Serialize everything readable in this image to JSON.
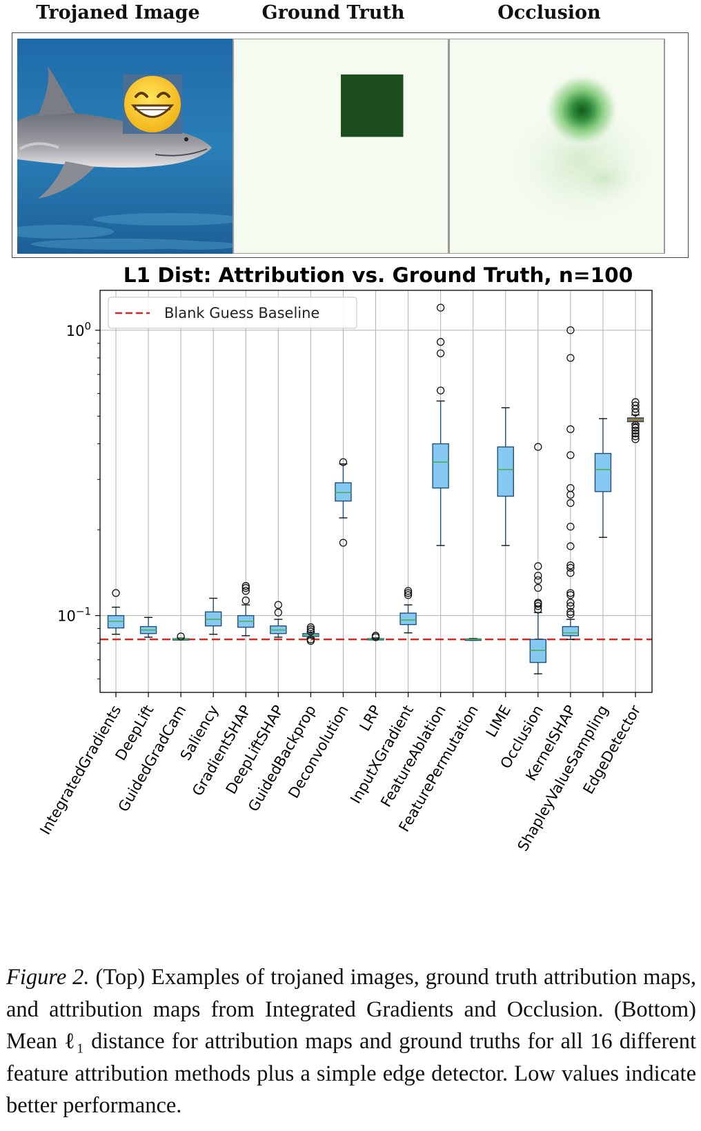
{
  "panels": {
    "trojaned_title": "Trojaned Image",
    "ground_truth_title": "Ground Truth",
    "occlusion_title": "Occlusion"
  },
  "chart_data": {
    "type": "box",
    "title": "L1 Dist: Attribution vs. Ground Truth, n=100",
    "yscale": "log",
    "ylim": [
      0.0538,
      1.38
    ],
    "ytick_labels": [
      {
        "base": "10",
        "exp": "0",
        "value": 1.0
      },
      {
        "base": "10",
        "exp": "−1",
        "value": 0.1
      }
    ],
    "legend": {
      "label": "Blank Guess Baseline",
      "position": "top-left"
    },
    "baseline": 0.0825,
    "baseline_color": "#d62728",
    "box_color": "#85c8f2",
    "highlight_box_color": "#c8502e",
    "median_color": "#4caf50",
    "categories": [
      "IntegratedGradients",
      "DeepLift",
      "GuidedGradCam",
      "Saliency",
      "GradientSHAP",
      "DeepLiftSHAP",
      "GuidedBackprop",
      "Deconvolution",
      "LRP",
      "InputXGradient",
      "FeatureAblation",
      "FeaturePermutation",
      "LIME",
      "Occlusion",
      "KernelSHAP",
      "ShapleyValueSampling",
      "EdgeDetector"
    ],
    "boxes": [
      {
        "wlo": 0.086,
        "q1": 0.0905,
        "med": 0.0955,
        "q3": 0.1,
        "whi": 0.107,
        "fliers": [
          0.12
        ]
      },
      {
        "wlo": 0.084,
        "q1": 0.0865,
        "med": 0.089,
        "q3": 0.0915,
        "whi": 0.0985,
        "fliers": []
      },
      {
        "wlo": 0.0822,
        "q1": 0.0826,
        "med": 0.0828,
        "q3": 0.083,
        "whi": 0.0834,
        "fliers": [
          0.0845
        ]
      },
      {
        "wlo": 0.086,
        "q1": 0.092,
        "med": 0.097,
        "q3": 0.103,
        "whi": 0.115,
        "fliers": []
      },
      {
        "wlo": 0.085,
        "q1": 0.091,
        "med": 0.0955,
        "q3": 0.1,
        "whi": 0.109,
        "fliers": [
          0.113,
          0.122,
          0.125,
          0.127
        ]
      },
      {
        "wlo": 0.084,
        "q1": 0.0865,
        "med": 0.089,
        "q3": 0.092,
        "whi": 0.097,
        "fliers": [
          0.1025,
          0.109
        ]
      },
      {
        "wlo": 0.0835,
        "q1": 0.0845,
        "med": 0.0855,
        "q3": 0.0865,
        "whi": 0.0875,
        "fliers": [
          0.0815,
          0.0825,
          0.088,
          0.0895,
          0.091
        ]
      },
      {
        "wlo": 0.22,
        "q1": 0.252,
        "med": 0.27,
        "q3": 0.292,
        "whi": 0.34,
        "fliers": [
          0.345,
          0.18
        ]
      },
      {
        "wlo": 0.0823,
        "q1": 0.0827,
        "med": 0.0829,
        "q3": 0.0831,
        "whi": 0.0835,
        "fliers": [
          0.084,
          0.085
        ]
      },
      {
        "wlo": 0.087,
        "q1": 0.093,
        "med": 0.0965,
        "q3": 0.102,
        "whi": 0.109,
        "fliers": [
          0.118,
          0.12,
          0.122
        ]
      },
      {
        "wlo": 0.176,
        "q1": 0.28,
        "med": 0.345,
        "q3": 0.4,
        "whi": 0.565,
        "fliers": [
          0.615,
          0.83,
          0.91,
          1.2
        ]
      },
      {
        "wlo": 0.0819,
        "q1": 0.0822,
        "med": 0.0825,
        "q3": 0.0828,
        "whi": 0.0831,
        "fliers": []
      },
      {
        "wlo": 0.176,
        "q1": 0.262,
        "med": 0.325,
        "q3": 0.39,
        "whi": 0.535,
        "fliers": []
      },
      {
        "wlo": 0.0625,
        "q1": 0.0685,
        "med": 0.0755,
        "q3": 0.0825,
        "whi": 0.1025,
        "fliers": [
          0.105,
          0.108,
          0.11,
          0.111,
          0.125,
          0.133,
          0.138,
          0.149,
          0.39
        ]
      },
      {
        "wlo": 0.0825,
        "q1": 0.085,
        "med": 0.087,
        "q3": 0.0915,
        "whi": 0.097,
        "fliers": [
          0.101,
          0.103,
          0.108,
          0.111,
          0.118,
          0.12,
          0.141,
          0.147,
          0.15,
          0.175,
          0.205,
          0.248,
          0.265,
          0.28,
          0.365,
          0.45,
          0.8,
          1.0
        ]
      },
      {
        "wlo": 0.188,
        "q1": 0.272,
        "med": 0.325,
        "q3": 0.37,
        "whi": 0.49,
        "fliers": []
      },
      {
        "wlo": 0.47,
        "q1": 0.478,
        "med": 0.486,
        "q3": 0.493,
        "whi": 0.505,
        "fliers": [
          0.415,
          0.425,
          0.435,
          0.445,
          0.455,
          0.465,
          0.515,
          0.53,
          0.545,
          0.56
        ],
        "highlight": true
      }
    ]
  },
  "caption": {
    "figure_label": "Figure 2.",
    "text": " (Top) Examples of trojaned images, ground truth attribution maps, and attribution maps from Integrated Gradients and Occlusion. (Bottom) Mean ℓ₁ distance for attribution maps and ground truths for all 16 different feature attribution methods plus a simple edge detector. Low values indicate better performance."
  }
}
